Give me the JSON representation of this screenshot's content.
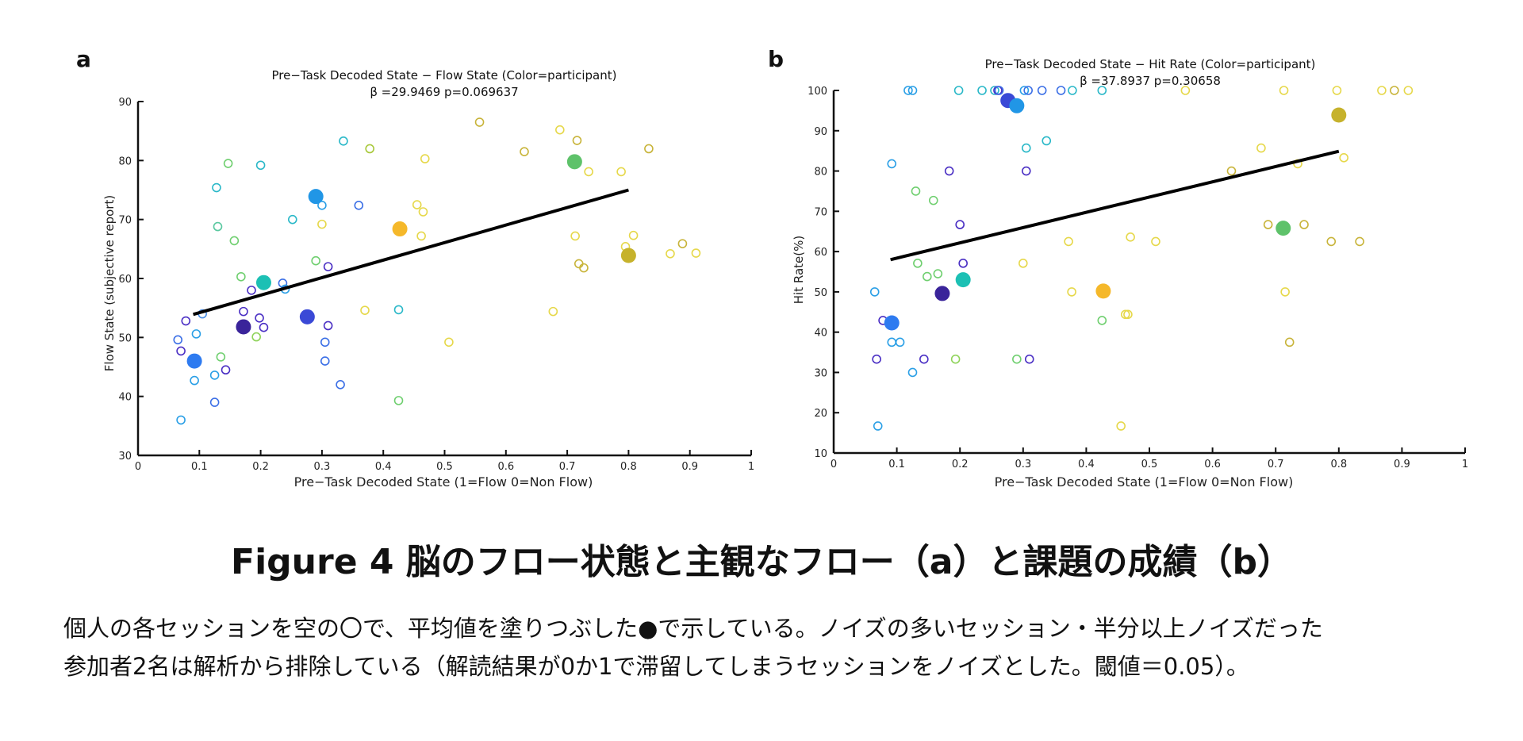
{
  "figure_caption": "Figure 4 脳のフロー状態と主観なフロー（a）と課題の成績（b）",
  "description": {
    "line1": "個人の各セッションを空の〇で、平均値を塗りつぶした●で示している。ノイズの多いセッション・半分以上ノイズだった",
    "line2": "参加者2名は解析から排除している（解読結果が0か1で滞留してしまうセッションをノイズとした。閾値＝0.05）。"
  },
  "chart_data": [
    {
      "panel": "a",
      "type": "scatter",
      "title": "Pre−Task Decoded State − Flow State (Color=participant)",
      "subtitle": "β =29.9469 p=0.069637",
      "xlabel": "Pre−Task Decoded State (1=Flow 0=Non Flow)",
      "ylabel": "Flow State (subjective report)",
      "xlim": [
        0,
        1
      ],
      "ylim": [
        30,
        90
      ],
      "xticks": [
        0,
        0.1,
        0.2,
        0.3,
        0.4,
        0.5,
        0.6,
        0.7,
        0.8,
        0.9,
        1
      ],
      "yticks": [
        30,
        40,
        50,
        60,
        70,
        80,
        90
      ],
      "grid": false,
      "regression_line": {
        "x": [
          0.09,
          0.8
        ],
        "y": [
          53.9,
          75.0
        ],
        "color": "#000000"
      },
      "sessions": [
        {
          "x": 0.065,
          "y": 49.6,
          "color": "#3b6fe6"
        },
        {
          "x": 0.07,
          "y": 47.7,
          "color": "#4a2fc4"
        },
        {
          "x": 0.078,
          "y": 52.8,
          "color": "#4a2fc4"
        },
        {
          "x": 0.095,
          "y": 50.6,
          "color": "#2a9fe6"
        },
        {
          "x": 0.105,
          "y": 54.0,
          "color": "#4a8fe6"
        },
        {
          "x": 0.092,
          "y": 42.7,
          "color": "#2a9fe6"
        },
        {
          "x": 0.07,
          "y": 36.0,
          "color": "#2a9fe6"
        },
        {
          "x": 0.125,
          "y": 43.6,
          "color": "#2a9fe6"
        },
        {
          "x": 0.125,
          "y": 39.0,
          "color": "#3b6fe6"
        },
        {
          "x": 0.143,
          "y": 44.5,
          "color": "#4a2fc4"
        },
        {
          "x": 0.135,
          "y": 46.7,
          "color": "#6fcf6f"
        },
        {
          "x": 0.13,
          "y": 68.8,
          "color": "#5ac8a0"
        },
        {
          "x": 0.128,
          "y": 75.4,
          "color": "#2ab8c8"
        },
        {
          "x": 0.147,
          "y": 79.5,
          "color": "#6fcf6f"
        },
        {
          "x": 0.157,
          "y": 66.4,
          "color": "#6fcf6f"
        },
        {
          "x": 0.168,
          "y": 60.3,
          "color": "#6fcf6f"
        },
        {
          "x": 0.172,
          "y": 54.4,
          "color": "#4a2fc4"
        },
        {
          "x": 0.185,
          "y": 58.0,
          "color": "#4a2fc4"
        },
        {
          "x": 0.193,
          "y": 50.1,
          "color": "#8fd35a"
        },
        {
          "x": 0.198,
          "y": 53.3,
          "color": "#4a2fc4"
        },
        {
          "x": 0.205,
          "y": 51.7,
          "color": "#4a2fc4"
        },
        {
          "x": 0.2,
          "y": 79.2,
          "color": "#2ab8c8"
        },
        {
          "x": 0.236,
          "y": 59.2,
          "color": "#3b6fe6"
        },
        {
          "x": 0.24,
          "y": 58.2,
          "color": "#2a9fe6"
        },
        {
          "x": 0.252,
          "y": 70.0,
          "color": "#2ab8c8"
        },
        {
          "x": 0.29,
          "y": 63.0,
          "color": "#6fcf6f"
        },
        {
          "x": 0.3,
          "y": 72.4,
          "color": "#2a9fe6"
        },
        {
          "x": 0.3,
          "y": 69.2,
          "color": "#e6d84a"
        },
        {
          "x": 0.305,
          "y": 49.2,
          "color": "#3b6fe6"
        },
        {
          "x": 0.305,
          "y": 46.0,
          "color": "#3b6fe6"
        },
        {
          "x": 0.31,
          "y": 52.0,
          "color": "#4a2fc4"
        },
        {
          "x": 0.31,
          "y": 62.0,
          "color": "#4a2fc4"
        },
        {
          "x": 0.33,
          "y": 42.0,
          "color": "#3b6fe6"
        },
        {
          "x": 0.335,
          "y": 83.3,
          "color": "#2ab8c8"
        },
        {
          "x": 0.36,
          "y": 72.4,
          "color": "#3b6fe6"
        },
        {
          "x": 0.37,
          "y": 54.6,
          "color": "#e6d84a"
        },
        {
          "x": 0.378,
          "y": 82.0,
          "color": "#a8c83a"
        },
        {
          "x": 0.425,
          "y": 54.7,
          "color": "#2ab8c8"
        },
        {
          "x": 0.425,
          "y": 39.3,
          "color": "#6fcf6f"
        },
        {
          "x": 0.455,
          "y": 72.5,
          "color": "#e6d84a"
        },
        {
          "x": 0.462,
          "y": 67.2,
          "color": "#e6d84a"
        },
        {
          "x": 0.465,
          "y": 71.3,
          "color": "#e6d84a"
        },
        {
          "x": 0.468,
          "y": 80.3,
          "color": "#e6d84a"
        },
        {
          "x": 0.507,
          "y": 49.2,
          "color": "#e6d84a"
        },
        {
          "x": 0.557,
          "y": 86.5,
          "color": "#c8b43a"
        },
        {
          "x": 0.63,
          "y": 81.5,
          "color": "#c8b43a"
        },
        {
          "x": 0.677,
          "y": 54.4,
          "color": "#e6d84a"
        },
        {
          "x": 0.688,
          "y": 85.2,
          "color": "#e6d84a"
        },
        {
          "x": 0.713,
          "y": 67.2,
          "color": "#e6d84a"
        },
        {
          "x": 0.716,
          "y": 83.4,
          "color": "#c8b43a"
        },
        {
          "x": 0.719,
          "y": 62.5,
          "color": "#c8b43a"
        },
        {
          "x": 0.727,
          "y": 61.8,
          "color": "#c8b43a"
        },
        {
          "x": 0.735,
          "y": 78.1,
          "color": "#e6d84a"
        },
        {
          "x": 0.788,
          "y": 78.1,
          "color": "#e6d84a"
        },
        {
          "x": 0.795,
          "y": 65.4,
          "color": "#e6d84a"
        },
        {
          "x": 0.808,
          "y": 67.3,
          "color": "#e6d84a"
        },
        {
          "x": 0.833,
          "y": 82.0,
          "color": "#c8b43a"
        },
        {
          "x": 0.868,
          "y": 64.2,
          "color": "#e6d84a"
        },
        {
          "x": 0.888,
          "y": 65.9,
          "color": "#c8b43a"
        },
        {
          "x": 0.91,
          "y": 64.3,
          "color": "#e6d84a"
        }
      ],
      "means": [
        {
          "x": 0.092,
          "y": 46.0,
          "color": "#2e7bf0"
        },
        {
          "x": 0.172,
          "y": 51.8,
          "color": "#3a249a"
        },
        {
          "x": 0.205,
          "y": 59.3,
          "color": "#1cc0b4"
        },
        {
          "x": 0.276,
          "y": 53.5,
          "color": "#3a49d6"
        },
        {
          "x": 0.29,
          "y": 73.9,
          "color": "#2196e6"
        },
        {
          "x": 0.427,
          "y": 68.4,
          "color": "#f5b82a"
        },
        {
          "x": 0.712,
          "y": 79.8,
          "color": "#5ec26a"
        },
        {
          "x": 0.8,
          "y": 63.9,
          "color": "#c6b22c"
        }
      ]
    },
    {
      "panel": "b",
      "type": "scatter",
      "title": "Pre−Task Decoded State − Hit Rate (Color=participant)",
      "subtitle": "β =37.8937 p=0.30658",
      "xlabel": "Pre−Task Decoded State (1=Flow 0=Non Flow)",
      "ylabel": "Hit Rate(%)",
      "xlim": [
        0,
        1
      ],
      "ylim": [
        10,
        100
      ],
      "xticks": [
        0,
        0.1,
        0.2,
        0.3,
        0.4,
        0.5,
        0.6,
        0.7,
        0.8,
        0.9,
        1
      ],
      "yticks": [
        10,
        20,
        30,
        40,
        50,
        60,
        70,
        80,
        90,
        100
      ],
      "grid": false,
      "regression_line": {
        "x": [
          0.09,
          0.8
        ],
        "y": [
          58.0,
          84.9
        ],
        "color": "#000000"
      },
      "sessions": [
        {
          "x": 0.065,
          "y": 50.0,
          "color": "#2a9fe6"
        },
        {
          "x": 0.068,
          "y": 33.3,
          "color": "#4a2fc4"
        },
        {
          "x": 0.07,
          "y": 16.7,
          "color": "#2a9fe6"
        },
        {
          "x": 0.078,
          "y": 42.9,
          "color": "#4a2fc4"
        },
        {
          "x": 0.092,
          "y": 37.5,
          "color": "#2a9fe6"
        },
        {
          "x": 0.092,
          "y": 81.8,
          "color": "#2a9fe6"
        },
        {
          "x": 0.105,
          "y": 37.5,
          "color": "#2a9fe6"
        },
        {
          "x": 0.118,
          "y": 100,
          "color": "#2a9fe6"
        },
        {
          "x": 0.125,
          "y": 100,
          "color": "#2a9fe6"
        },
        {
          "x": 0.125,
          "y": 30.0,
          "color": "#2a9fe6"
        },
        {
          "x": 0.13,
          "y": 75.0,
          "color": "#6fcf6f"
        },
        {
          "x": 0.133,
          "y": 57.1,
          "color": "#6fcf6f"
        },
        {
          "x": 0.143,
          "y": 33.3,
          "color": "#4a2fc4"
        },
        {
          "x": 0.148,
          "y": 53.8,
          "color": "#6fcf6f"
        },
        {
          "x": 0.158,
          "y": 72.7,
          "color": "#6fcf6f"
        },
        {
          "x": 0.165,
          "y": 54.5,
          "color": "#6fcf6f"
        },
        {
          "x": 0.183,
          "y": 80.0,
          "color": "#4a2fc4"
        },
        {
          "x": 0.193,
          "y": 33.3,
          "color": "#8fd35a"
        },
        {
          "x": 0.198,
          "y": 100,
          "color": "#2ab8c8"
        },
        {
          "x": 0.2,
          "y": 66.7,
          "color": "#4a2fc4"
        },
        {
          "x": 0.205,
          "y": 57.1,
          "color": "#4a2fc4"
        },
        {
          "x": 0.235,
          "y": 100,
          "color": "#2ab8c8"
        },
        {
          "x": 0.255,
          "y": 100,
          "color": "#2ab8c8"
        },
        {
          "x": 0.26,
          "y": 100,
          "color": "#4a2fc4"
        },
        {
          "x": 0.262,
          "y": 100,
          "color": "#3b6fe6"
        },
        {
          "x": 0.29,
          "y": 33.3,
          "color": "#6fcf6f"
        },
        {
          "x": 0.3,
          "y": 57.1,
          "color": "#e6d84a"
        },
        {
          "x": 0.302,
          "y": 100,
          "color": "#2a9fe6"
        },
        {
          "x": 0.305,
          "y": 85.7,
          "color": "#2ab8c8"
        },
        {
          "x": 0.305,
          "y": 80.0,
          "color": "#4a2fc4"
        },
        {
          "x": 0.308,
          "y": 100,
          "color": "#3b6fe6"
        },
        {
          "x": 0.31,
          "y": 33.3,
          "color": "#4a2fc4"
        },
        {
          "x": 0.33,
          "y": 100,
          "color": "#3b6fe6"
        },
        {
          "x": 0.337,
          "y": 87.5,
          "color": "#2ab8c8"
        },
        {
          "x": 0.36,
          "y": 100,
          "color": "#3b6fe6"
        },
        {
          "x": 0.372,
          "y": 62.5,
          "color": "#e6d84a"
        },
        {
          "x": 0.377,
          "y": 50.0,
          "color": "#e6d84a"
        },
        {
          "x": 0.378,
          "y": 100,
          "color": "#2ab8c8"
        },
        {
          "x": 0.425,
          "y": 42.9,
          "color": "#6fcf6f"
        },
        {
          "x": 0.425,
          "y": 100,
          "color": "#2ab8c8"
        },
        {
          "x": 0.455,
          "y": 16.7,
          "color": "#e6d84a"
        },
        {
          "x": 0.462,
          "y": 44.4,
          "color": "#e6d84a"
        },
        {
          "x": 0.466,
          "y": 44.4,
          "color": "#e6d84a"
        },
        {
          "x": 0.47,
          "y": 63.6,
          "color": "#e6d84a"
        },
        {
          "x": 0.51,
          "y": 62.5,
          "color": "#e6d84a"
        },
        {
          "x": 0.557,
          "y": 100,
          "color": "#e6d84a"
        },
        {
          "x": 0.63,
          "y": 80.0,
          "color": "#c8b43a"
        },
        {
          "x": 0.677,
          "y": 85.7,
          "color": "#e6d84a"
        },
        {
          "x": 0.688,
          "y": 66.7,
          "color": "#c8b43a"
        },
        {
          "x": 0.713,
          "y": 100,
          "color": "#e6d84a"
        },
        {
          "x": 0.715,
          "y": 50.0,
          "color": "#e6d84a"
        },
        {
          "x": 0.722,
          "y": 37.5,
          "color": "#c8b43a"
        },
        {
          "x": 0.735,
          "y": 81.8,
          "color": "#e6d84a"
        },
        {
          "x": 0.745,
          "y": 66.7,
          "color": "#c8b43a"
        },
        {
          "x": 0.788,
          "y": 62.5,
          "color": "#c8b43a"
        },
        {
          "x": 0.797,
          "y": 100,
          "color": "#e6d84a"
        },
        {
          "x": 0.808,
          "y": 83.3,
          "color": "#e6d84a"
        },
        {
          "x": 0.833,
          "y": 62.5,
          "color": "#c8b43a"
        },
        {
          "x": 0.868,
          "y": 100,
          "color": "#e6d84a"
        },
        {
          "x": 0.888,
          "y": 100,
          "color": "#c8b43a"
        },
        {
          "x": 0.91,
          "y": 100,
          "color": "#e6d84a"
        }
      ],
      "means": [
        {
          "x": 0.092,
          "y": 42.3,
          "color": "#2e7bf0"
        },
        {
          "x": 0.172,
          "y": 49.6,
          "color": "#3a249a"
        },
        {
          "x": 0.205,
          "y": 53.0,
          "color": "#1cc0b4"
        },
        {
          "x": 0.276,
          "y": 97.5,
          "color": "#3a49d6"
        },
        {
          "x": 0.29,
          "y": 96.2,
          "color": "#2196e6"
        },
        {
          "x": 0.427,
          "y": 50.2,
          "color": "#f5b82a"
        },
        {
          "x": 0.712,
          "y": 65.8,
          "color": "#5ec26a"
        },
        {
          "x": 0.8,
          "y": 93.9,
          "color": "#c6b22c"
        }
      ]
    }
  ]
}
